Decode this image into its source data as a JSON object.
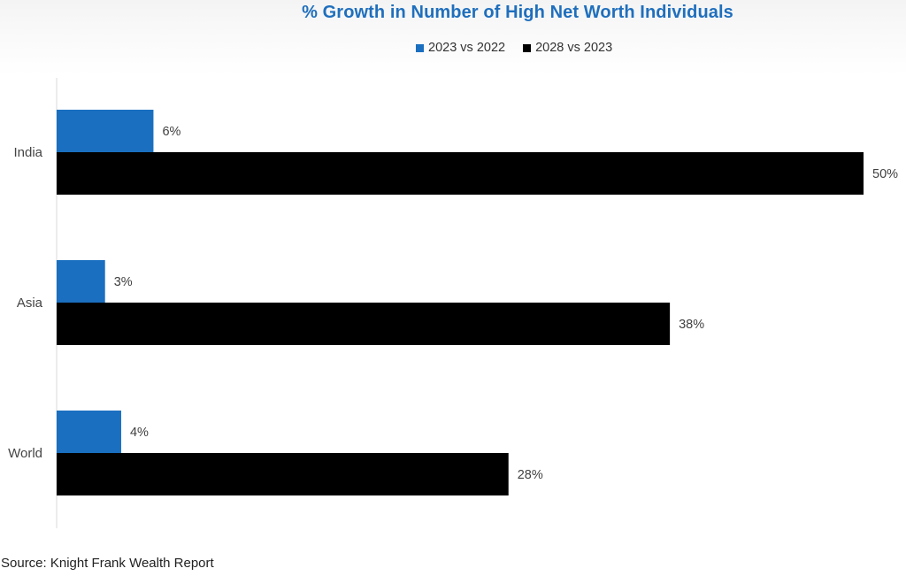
{
  "title": "% Growth in Number of High Net Worth Individuals",
  "source": "Source: Knight Frank Wealth Report",
  "colors": {
    "title": "#1f6fbd",
    "series_2023_vs_2022": "#1a6fc0",
    "series_2028_vs_2023": "#000000"
  },
  "legend_position": "top",
  "chart_data": {
    "type": "bar",
    "orientation": "horizontal",
    "title": "% Growth in Number of High Net Worth Individuals",
    "categories": [
      "India",
      "Asia",
      "World"
    ],
    "series": [
      {
        "name": "2023 vs 2022",
        "color": "#1a6fc0",
        "values": [
          6,
          3,
          4
        ],
        "labels": [
          "6%",
          "3%",
          "4%"
        ]
      },
      {
        "name": "2028 vs 2023",
        "color": "#000000",
        "values": [
          50,
          38,
          28
        ],
        "labels": [
          "50%",
          "38%",
          "28%"
        ]
      }
    ],
    "xlim": [
      0,
      50
    ],
    "grid": false,
    "x_axis_visible": false,
    "legend": "top"
  }
}
